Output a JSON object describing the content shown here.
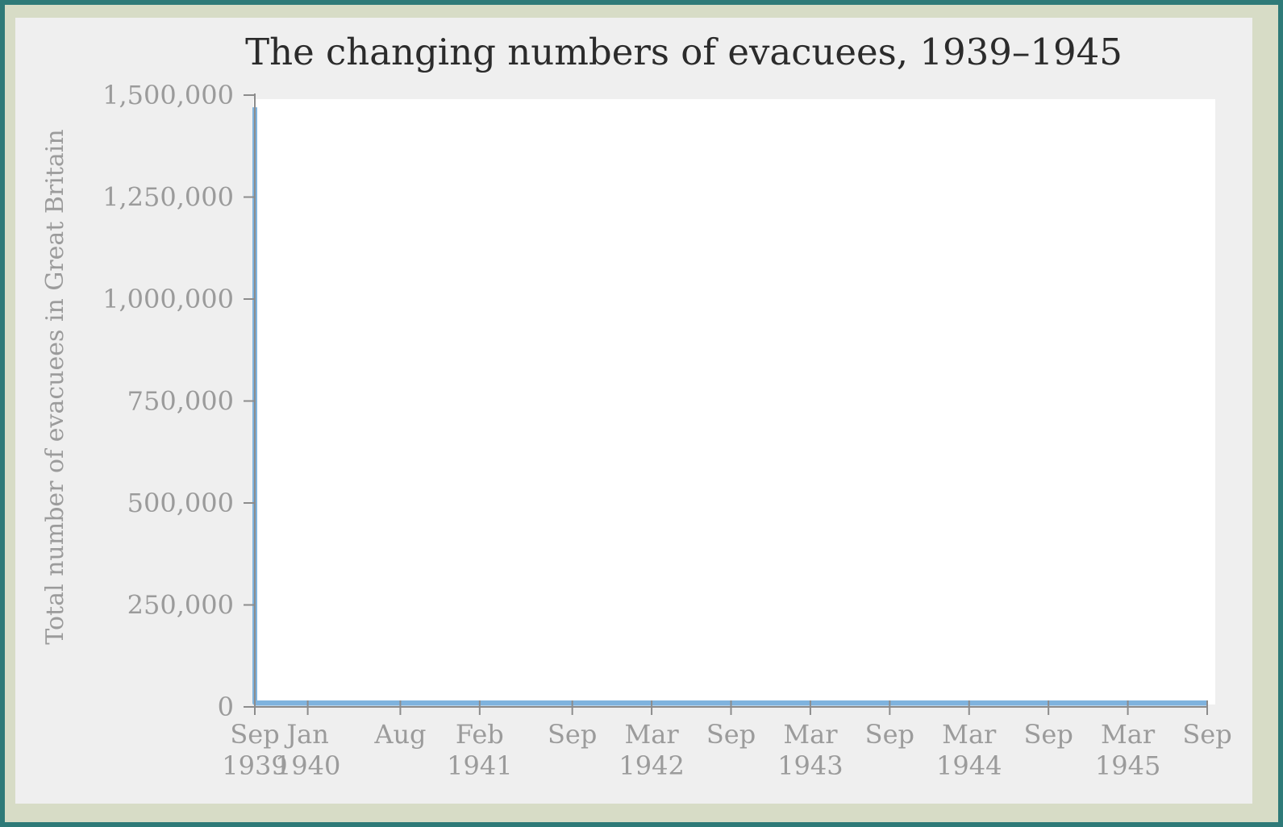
{
  "chart_data": {
    "type": "area",
    "title": "The changing numbers of evacuees, 1939–1945",
    "xlabel": "",
    "ylabel": "Total number of evacuees in Great Britain",
    "ylim": [
      0,
      1500000
    ],
    "yticks": [
      {
        "value": 0,
        "label": "0"
      },
      {
        "value": 250000,
        "label": "250,000"
      },
      {
        "value": 500000,
        "label": "500,000"
      },
      {
        "value": 750000,
        "label": "750,000"
      },
      {
        "value": 1000000,
        "label": "1,000,000"
      },
      {
        "value": 1250000,
        "label": "1,250,000"
      },
      {
        "value": 1500000,
        "label": "1,500,000"
      }
    ],
    "xlim": [
      "1939-09",
      "1945-09"
    ],
    "xticks": [
      {
        "date": "1939-09",
        "month": "Sep",
        "year": "1939"
      },
      {
        "date": "1940-01",
        "month": "Jan",
        "year": "1940"
      },
      {
        "date": "1940-08",
        "month": "Aug",
        "year": ""
      },
      {
        "date": "1941-02",
        "month": "Feb",
        "year": "1941"
      },
      {
        "date": "1941-09",
        "month": "Sep",
        "year": ""
      },
      {
        "date": "1942-03",
        "month": "Mar",
        "year": "1942"
      },
      {
        "date": "1942-09",
        "month": "Sep",
        "year": ""
      },
      {
        "date": "1943-03",
        "month": "Mar",
        "year": "1943"
      },
      {
        "date": "1943-09",
        "month": "Sep",
        "year": ""
      },
      {
        "date": "1944-03",
        "month": "Mar",
        "year": "1944"
      },
      {
        "date": "1944-09",
        "month": "Sep",
        "year": ""
      },
      {
        "date": "1945-03",
        "month": "Mar",
        "year": "1945"
      },
      {
        "date": "1945-09",
        "month": "Sep",
        "year": ""
      }
    ],
    "series": [
      {
        "color": "#7fb3de",
        "points": [
          {
            "x": "1939-09",
            "y": 1470000
          },
          {
            "x": "1939-09",
            "y": 10000
          },
          {
            "x": "1945-09",
            "y": 10000
          }
        ]
      }
    ]
  }
}
